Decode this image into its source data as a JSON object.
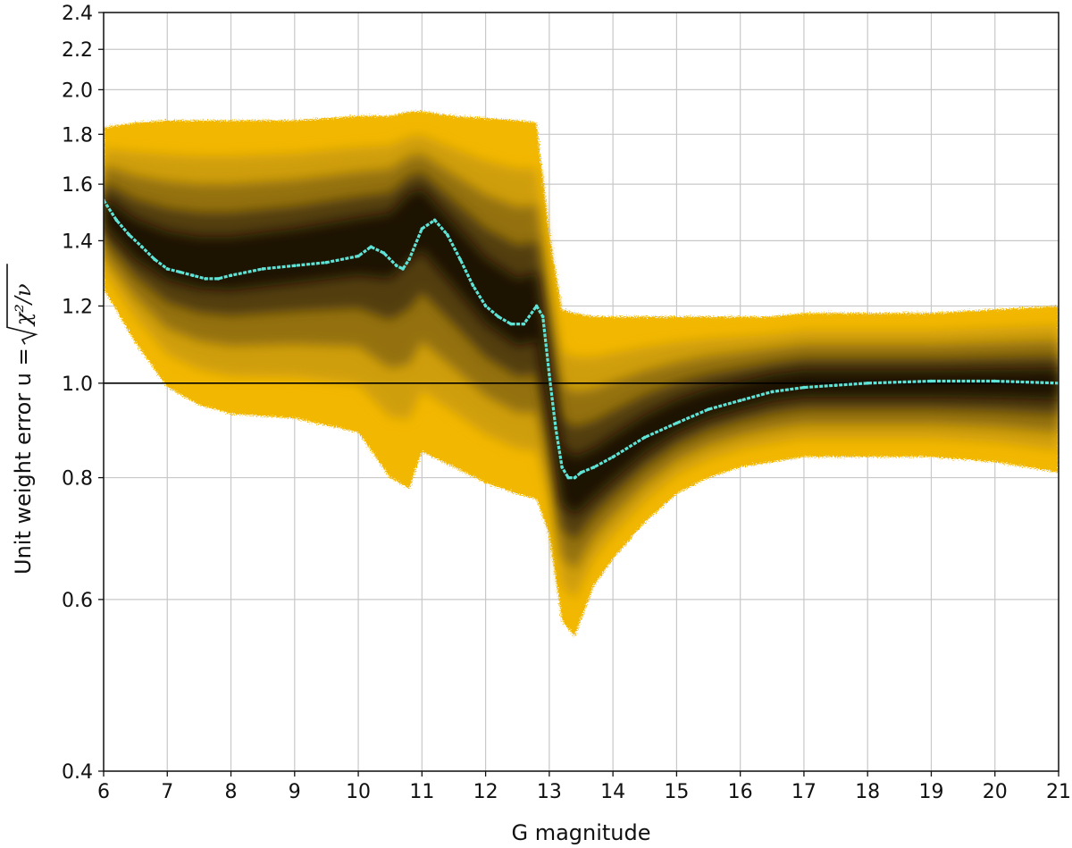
{
  "chart_data": {
    "type": "heatmap",
    "title": "",
    "xlabel": "G magnitude",
    "ylabel": "Unit weight error u = ",
    "ylabel_formula": "χ²/ν",
    "xlim": [
      6,
      21
    ],
    "ylim": [
      0.4,
      2.4
    ],
    "y_scale": "log",
    "grid": true,
    "x_ticks": [
      "6",
      "7",
      "8",
      "9",
      "10",
      "11",
      "12",
      "13",
      "14",
      "15",
      "16",
      "17",
      "18",
      "19",
      "20",
      "21"
    ],
    "y_ticks": [
      "0.4",
      "0.6",
      "0.8",
      "1.0",
      "1.2",
      "1.4",
      "1.6",
      "1.8",
      "2.0",
      "2.2",
      "2.4"
    ],
    "reference_line_y": 1.0,
    "colors": {
      "density_low": "#f2b705",
      "density_high": "#1a1206",
      "median_line": "#5fe3d6",
      "grid": "#c8c8c8"
    },
    "density_envelope": {
      "x": [
        6.0,
        6.5,
        7.0,
        7.5,
        8.0,
        9.0,
        10.0,
        10.5,
        10.8,
        11.0,
        11.5,
        12.0,
        12.5,
        12.8,
        13.0,
        13.2,
        13.4,
        13.7,
        14.0,
        14.5,
        15.0,
        15.5,
        16.0,
        16.5,
        17.0,
        18.0,
        19.0,
        20.0,
        21.0
      ],
      "upper": [
        1.83,
        1.85,
        1.86,
        1.86,
        1.86,
        1.86,
        1.88,
        1.88,
        1.9,
        1.9,
        1.88,
        1.87,
        1.86,
        1.85,
        1.42,
        1.19,
        1.18,
        1.17,
        1.17,
        1.17,
        1.17,
        1.17,
        1.17,
        1.17,
        1.18,
        1.18,
        1.18,
        1.19,
        1.2
      ],
      "lower": [
        1.25,
        1.1,
        0.99,
        0.95,
        0.93,
        0.92,
        0.89,
        0.8,
        0.78,
        0.85,
        0.82,
        0.79,
        0.77,
        0.76,
        0.7,
        0.57,
        0.55,
        0.62,
        0.66,
        0.72,
        0.77,
        0.8,
        0.82,
        0.83,
        0.84,
        0.84,
        0.84,
        0.83,
        0.81
      ],
      "ridge": [
        1.5,
        1.4,
        1.35,
        1.33,
        1.33,
        1.36,
        1.4,
        1.42,
        1.5,
        1.52,
        1.38,
        1.25,
        1.18,
        1.2,
        0.98,
        0.8,
        0.78,
        0.8,
        0.83,
        0.88,
        0.92,
        0.95,
        0.97,
        0.99,
        1.0,
        1.0,
        1.0,
        1.0,
        1.0
      ]
    },
    "series": [
      {
        "x": [
          6.0,
          6.2,
          6.4,
          6.6,
          6.8,
          7.0,
          7.2,
          7.4,
          7.6,
          7.8,
          8.0,
          8.5,
          9.0,
          9.5,
          10.0,
          10.2,
          10.4,
          10.6,
          10.7,
          10.8,
          11.0,
          11.2,
          11.4,
          11.6,
          11.8,
          12.0,
          12.2,
          12.4,
          12.6,
          12.8,
          12.9,
          13.0,
          13.1,
          13.2,
          13.3,
          13.4,
          13.5,
          13.7,
          14.0,
          14.5,
          15.0,
          15.5,
          16.0,
          16.5,
          17.0,
          17.5,
          18.0,
          19.0,
          20.0,
          21.0
        ],
        "values": [
          1.54,
          1.47,
          1.42,
          1.38,
          1.34,
          1.31,
          1.3,
          1.29,
          1.28,
          1.28,
          1.29,
          1.31,
          1.32,
          1.33,
          1.35,
          1.38,
          1.36,
          1.32,
          1.31,
          1.34,
          1.44,
          1.47,
          1.42,
          1.34,
          1.26,
          1.2,
          1.17,
          1.15,
          1.15,
          1.2,
          1.17,
          1.02,
          0.9,
          0.82,
          0.8,
          0.8,
          0.81,
          0.82,
          0.84,
          0.88,
          0.91,
          0.94,
          0.96,
          0.98,
          0.99,
          0.995,
          1.0,
          1.005,
          1.005,
          1.0
        ]
      }
    ]
  }
}
